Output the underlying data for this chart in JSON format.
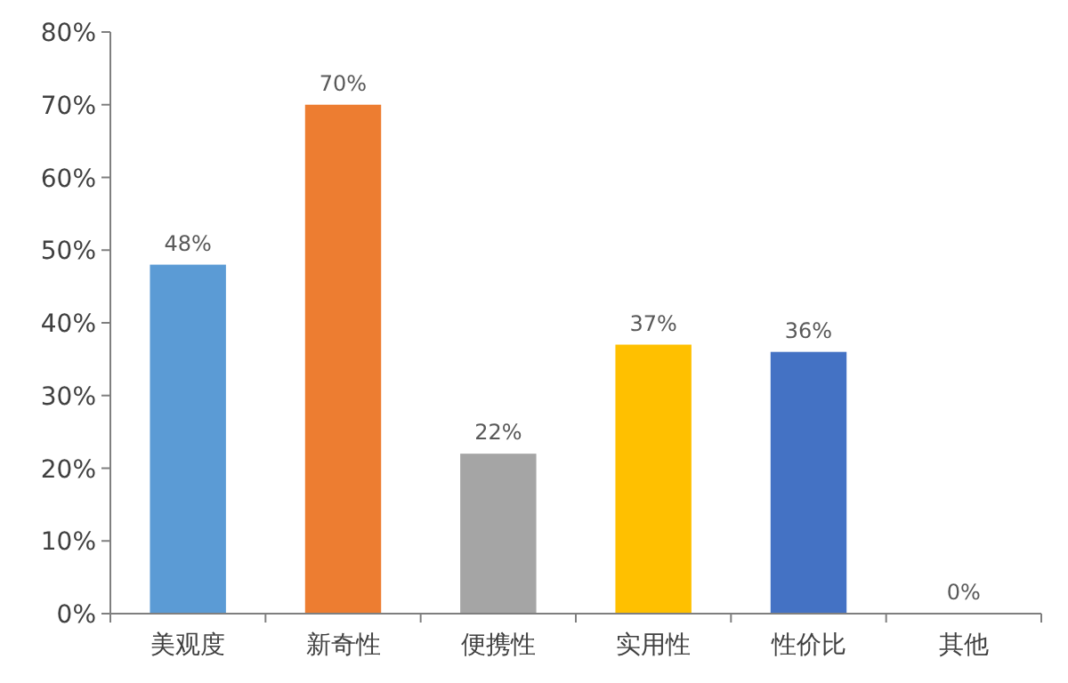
{
  "chart_data": {
    "type": "bar",
    "categories": [
      "美观度",
      "新奇性",
      "便携性",
      "实用性",
      "性价比",
      "其他"
    ],
    "values": [
      48,
      70,
      22,
      37,
      36,
      0
    ],
    "colors": [
      "#5b9bd5",
      "#ed7d31",
      "#a5a5a5",
      "#ffc000",
      "#4472c4",
      "#70ad47"
    ],
    "value_labels": [
      "48%",
      "70%",
      "22%",
      "37%",
      "36%",
      "0%"
    ],
    "ylim": [
      0,
      80
    ],
    "yticks": [
      {
        "value": 0,
        "label": "0%"
      },
      {
        "value": 10,
        "label": "10%"
      },
      {
        "value": 20,
        "label": "20%"
      },
      {
        "value": 30,
        "label": "30%"
      },
      {
        "value": 40,
        "label": "40%"
      },
      {
        "value": 50,
        "label": "50%"
      },
      {
        "value": 60,
        "label": "60%"
      },
      {
        "value": 70,
        "label": "70%"
      },
      {
        "value": 80,
        "label": "80%"
      }
    ]
  }
}
